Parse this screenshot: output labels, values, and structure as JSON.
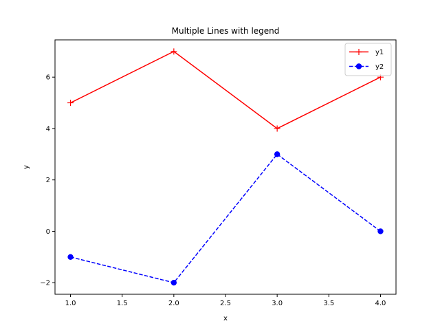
{
  "chart_data": {
    "type": "line",
    "title": "Multiple Lines with legend",
    "xlabel": "x",
    "ylabel": "y",
    "x": [
      1.0,
      2.0,
      3.0,
      4.0
    ],
    "xlim": [
      0.85,
      4.15
    ],
    "ylim": [
      -2.45,
      7.45
    ],
    "xticks": [
      1.0,
      1.5,
      2.0,
      2.5,
      3.0,
      3.5,
      4.0
    ],
    "xtick_labels": [
      "1.0",
      "1.5",
      "2.0",
      "2.5",
      "3.0",
      "3.5",
      "4.0"
    ],
    "yticks": [
      -2,
      0,
      2,
      4,
      6
    ],
    "ytick_labels": [
      "−2",
      "0",
      "2",
      "4",
      "6"
    ],
    "grid": false,
    "legend_position": "top-right",
    "series": [
      {
        "name": "y1",
        "values": [
          5,
          7,
          4,
          6
        ],
        "color": "#ff0000",
        "line_style": "solid",
        "marker": "plus"
      },
      {
        "name": "y2",
        "values": [
          -1,
          -2,
          3,
          0
        ],
        "color": "#0000ff",
        "line_style": "dashed",
        "marker": "circle"
      }
    ]
  }
}
